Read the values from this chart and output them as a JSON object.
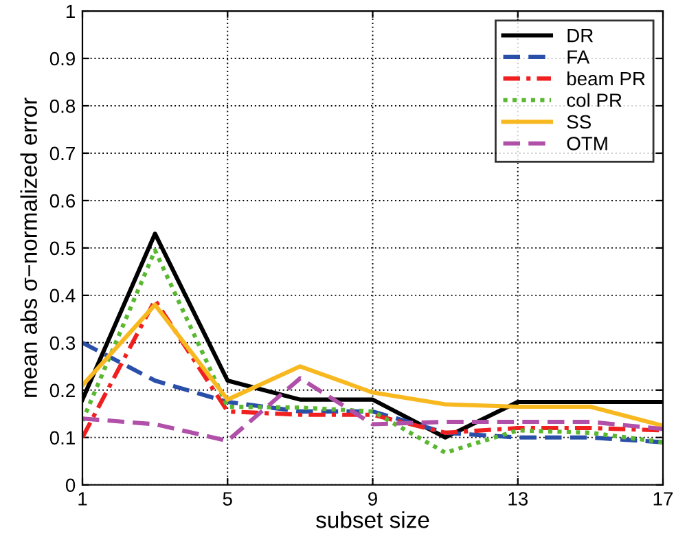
{
  "chart_data": {
    "type": "line",
    "xlabel": "subset size",
    "ylabel": "mean abs σ−normalized error",
    "x": [
      1,
      3,
      5,
      7,
      9,
      11,
      13,
      15,
      17
    ],
    "series": [
      {
        "name": "DR",
        "color": "#000000",
        "line_style": "solid",
        "values": [
          0.18,
          0.53,
          0.22,
          0.18,
          0.18,
          0.1,
          0.175,
          0.175,
          0.175
        ]
      },
      {
        "name": "FA",
        "color": "#2a4fa8",
        "line_style": "dashed",
        "values": [
          0.3,
          0.22,
          0.175,
          0.155,
          0.155,
          0.11,
          0.1,
          0.1,
          0.09
        ]
      },
      {
        "name": "beam PR",
        "color": "#f02020",
        "line_style": "dashdot",
        "values": [
          0.1,
          0.39,
          0.155,
          0.148,
          0.148,
          0.11,
          0.12,
          0.12,
          0.115
        ]
      },
      {
        "name": "col PR",
        "color": "#5ab830",
        "line_style": "dotted",
        "values": [
          0.135,
          0.495,
          0.165,
          0.163,
          0.155,
          0.068,
          0.115,
          0.11,
          0.09
        ]
      },
      {
        "name": "SS",
        "color": "#f8b820",
        "line_style": "solid",
        "values": [
          0.21,
          0.38,
          0.18,
          0.25,
          0.195,
          0.17,
          0.165,
          0.165,
          0.125
        ]
      },
      {
        "name": "OTM",
        "color": "#b050a8",
        "line_style": "dashed",
        "values": [
          0.14,
          0.128,
          0.093,
          0.225,
          0.128,
          0.133,
          0.133,
          0.133,
          0.118
        ]
      }
    ],
    "xlim": [
      1,
      17
    ],
    "xticks": [
      1,
      5,
      9,
      13,
      17
    ],
    "ylim": [
      0,
      1
    ],
    "yticks": [
      0,
      0.1,
      0.2,
      0.3,
      0.4,
      0.5,
      0.6,
      0.7,
      0.8,
      0.9,
      1
    ],
    "grid": true,
    "legend": "top right",
    "marker": "none"
  }
}
